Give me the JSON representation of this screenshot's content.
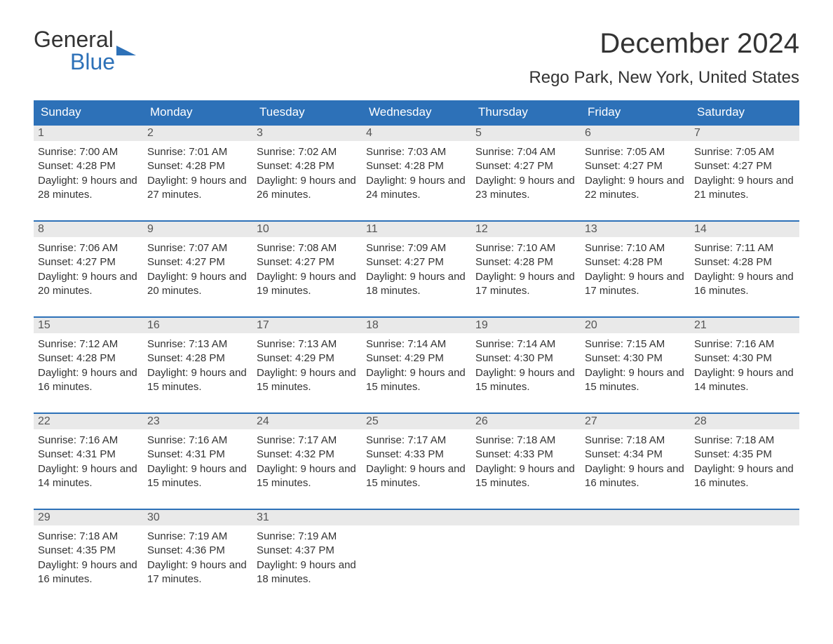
{
  "logo": {
    "word1": "General",
    "word2": "Blue"
  },
  "title": {
    "month": "December 2024",
    "location": "Rego Park, New York, United States"
  },
  "style": {
    "header_bg": "#2d71b8",
    "header_text": "#ffffff",
    "daynum_bg": "#e9e9e9",
    "week_border": "#2d71b8",
    "body_text": "#333333",
    "logo_accent": "#2d71b8",
    "page_bg": "#ffffff",
    "dow_fontsize": 17,
    "title_fontsize": 40,
    "location_fontsize": 24,
    "body_fontsize": 15
  },
  "days_of_week": [
    "Sunday",
    "Monday",
    "Tuesday",
    "Wednesday",
    "Thursday",
    "Friday",
    "Saturday"
  ],
  "weeks": [
    [
      {
        "n": "1",
        "sr": "Sunrise: 7:00 AM",
        "ss": "Sunset: 4:28 PM",
        "dl": "Daylight: 9 hours and 28 minutes."
      },
      {
        "n": "2",
        "sr": "Sunrise: 7:01 AM",
        "ss": "Sunset: 4:28 PM",
        "dl": "Daylight: 9 hours and 27 minutes."
      },
      {
        "n": "3",
        "sr": "Sunrise: 7:02 AM",
        "ss": "Sunset: 4:28 PM",
        "dl": "Daylight: 9 hours and 26 minutes."
      },
      {
        "n": "4",
        "sr": "Sunrise: 7:03 AM",
        "ss": "Sunset: 4:28 PM",
        "dl": "Daylight: 9 hours and 24 minutes."
      },
      {
        "n": "5",
        "sr": "Sunrise: 7:04 AM",
        "ss": "Sunset: 4:27 PM",
        "dl": "Daylight: 9 hours and 23 minutes."
      },
      {
        "n": "6",
        "sr": "Sunrise: 7:05 AM",
        "ss": "Sunset: 4:27 PM",
        "dl": "Daylight: 9 hours and 22 minutes."
      },
      {
        "n": "7",
        "sr": "Sunrise: 7:05 AM",
        "ss": "Sunset: 4:27 PM",
        "dl": "Daylight: 9 hours and 21 minutes."
      }
    ],
    [
      {
        "n": "8",
        "sr": "Sunrise: 7:06 AM",
        "ss": "Sunset: 4:27 PM",
        "dl": "Daylight: 9 hours and 20 minutes."
      },
      {
        "n": "9",
        "sr": "Sunrise: 7:07 AM",
        "ss": "Sunset: 4:27 PM",
        "dl": "Daylight: 9 hours and 20 minutes."
      },
      {
        "n": "10",
        "sr": "Sunrise: 7:08 AM",
        "ss": "Sunset: 4:27 PM",
        "dl": "Daylight: 9 hours and 19 minutes."
      },
      {
        "n": "11",
        "sr": "Sunrise: 7:09 AM",
        "ss": "Sunset: 4:27 PM",
        "dl": "Daylight: 9 hours and 18 minutes."
      },
      {
        "n": "12",
        "sr": "Sunrise: 7:10 AM",
        "ss": "Sunset: 4:28 PM",
        "dl": "Daylight: 9 hours and 17 minutes."
      },
      {
        "n": "13",
        "sr": "Sunrise: 7:10 AM",
        "ss": "Sunset: 4:28 PM",
        "dl": "Daylight: 9 hours and 17 minutes."
      },
      {
        "n": "14",
        "sr": "Sunrise: 7:11 AM",
        "ss": "Sunset: 4:28 PM",
        "dl": "Daylight: 9 hours and 16 minutes."
      }
    ],
    [
      {
        "n": "15",
        "sr": "Sunrise: 7:12 AM",
        "ss": "Sunset: 4:28 PM",
        "dl": "Daylight: 9 hours and 16 minutes."
      },
      {
        "n": "16",
        "sr": "Sunrise: 7:13 AM",
        "ss": "Sunset: 4:28 PM",
        "dl": "Daylight: 9 hours and 15 minutes."
      },
      {
        "n": "17",
        "sr": "Sunrise: 7:13 AM",
        "ss": "Sunset: 4:29 PM",
        "dl": "Daylight: 9 hours and 15 minutes."
      },
      {
        "n": "18",
        "sr": "Sunrise: 7:14 AM",
        "ss": "Sunset: 4:29 PM",
        "dl": "Daylight: 9 hours and 15 minutes."
      },
      {
        "n": "19",
        "sr": "Sunrise: 7:14 AM",
        "ss": "Sunset: 4:30 PM",
        "dl": "Daylight: 9 hours and 15 minutes."
      },
      {
        "n": "20",
        "sr": "Sunrise: 7:15 AM",
        "ss": "Sunset: 4:30 PM",
        "dl": "Daylight: 9 hours and 15 minutes."
      },
      {
        "n": "21",
        "sr": "Sunrise: 7:16 AM",
        "ss": "Sunset: 4:30 PM",
        "dl": "Daylight: 9 hours and 14 minutes."
      }
    ],
    [
      {
        "n": "22",
        "sr": "Sunrise: 7:16 AM",
        "ss": "Sunset: 4:31 PM",
        "dl": "Daylight: 9 hours and 14 minutes."
      },
      {
        "n": "23",
        "sr": "Sunrise: 7:16 AM",
        "ss": "Sunset: 4:31 PM",
        "dl": "Daylight: 9 hours and 15 minutes."
      },
      {
        "n": "24",
        "sr": "Sunrise: 7:17 AM",
        "ss": "Sunset: 4:32 PM",
        "dl": "Daylight: 9 hours and 15 minutes."
      },
      {
        "n": "25",
        "sr": "Sunrise: 7:17 AM",
        "ss": "Sunset: 4:33 PM",
        "dl": "Daylight: 9 hours and 15 minutes."
      },
      {
        "n": "26",
        "sr": "Sunrise: 7:18 AM",
        "ss": "Sunset: 4:33 PM",
        "dl": "Daylight: 9 hours and 15 minutes."
      },
      {
        "n": "27",
        "sr": "Sunrise: 7:18 AM",
        "ss": "Sunset: 4:34 PM",
        "dl": "Daylight: 9 hours and 16 minutes."
      },
      {
        "n": "28",
        "sr": "Sunrise: 7:18 AM",
        "ss": "Sunset: 4:35 PM",
        "dl": "Daylight: 9 hours and 16 minutes."
      }
    ],
    [
      {
        "n": "29",
        "sr": "Sunrise: 7:18 AM",
        "ss": "Sunset: 4:35 PM",
        "dl": "Daylight: 9 hours and 16 minutes."
      },
      {
        "n": "30",
        "sr": "Sunrise: 7:19 AM",
        "ss": "Sunset: 4:36 PM",
        "dl": "Daylight: 9 hours and 17 minutes."
      },
      {
        "n": "31",
        "sr": "Sunrise: 7:19 AM",
        "ss": "Sunset: 4:37 PM",
        "dl": "Daylight: 9 hours and 18 minutes."
      },
      {
        "empty": true
      },
      {
        "empty": true
      },
      {
        "empty": true
      },
      {
        "empty": true
      }
    ]
  ]
}
